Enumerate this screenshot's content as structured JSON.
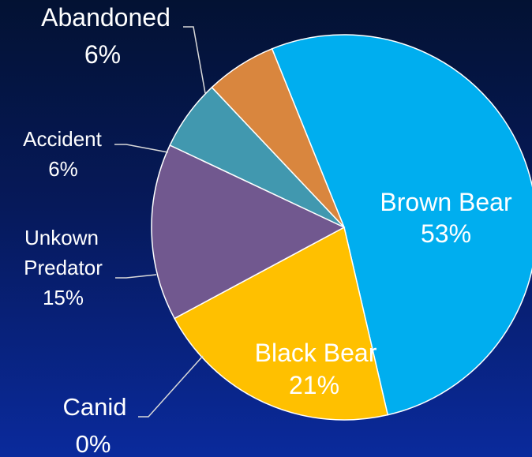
{
  "chart_data": {
    "type": "pie",
    "slices": [
      {
        "label": "Brown Bear",
        "percent_text": "53%",
        "value": 53,
        "color": "#00AEEF"
      },
      {
        "label": "Black Bear",
        "percent_text": "21%",
        "value": 21,
        "color": "#FFC000"
      },
      {
        "label": "Canid",
        "percent_text": "0%",
        "value": 0,
        "color": "#6A3E8C"
      },
      {
        "label": "Unkown Predator",
        "percent_text": "15%",
        "value": 15,
        "color": "#71588F"
      },
      {
        "label": "Accident",
        "percent_text": "6%",
        "value": 6,
        "color": "#4198AF"
      },
      {
        "label": "Abandoned",
        "percent_text": "6%",
        "value": 6,
        "color": "#D9863E"
      }
    ],
    "label_colors": {
      "inside_text": "#FFFFFF",
      "outside_text": "#FFFFFF"
    }
  }
}
